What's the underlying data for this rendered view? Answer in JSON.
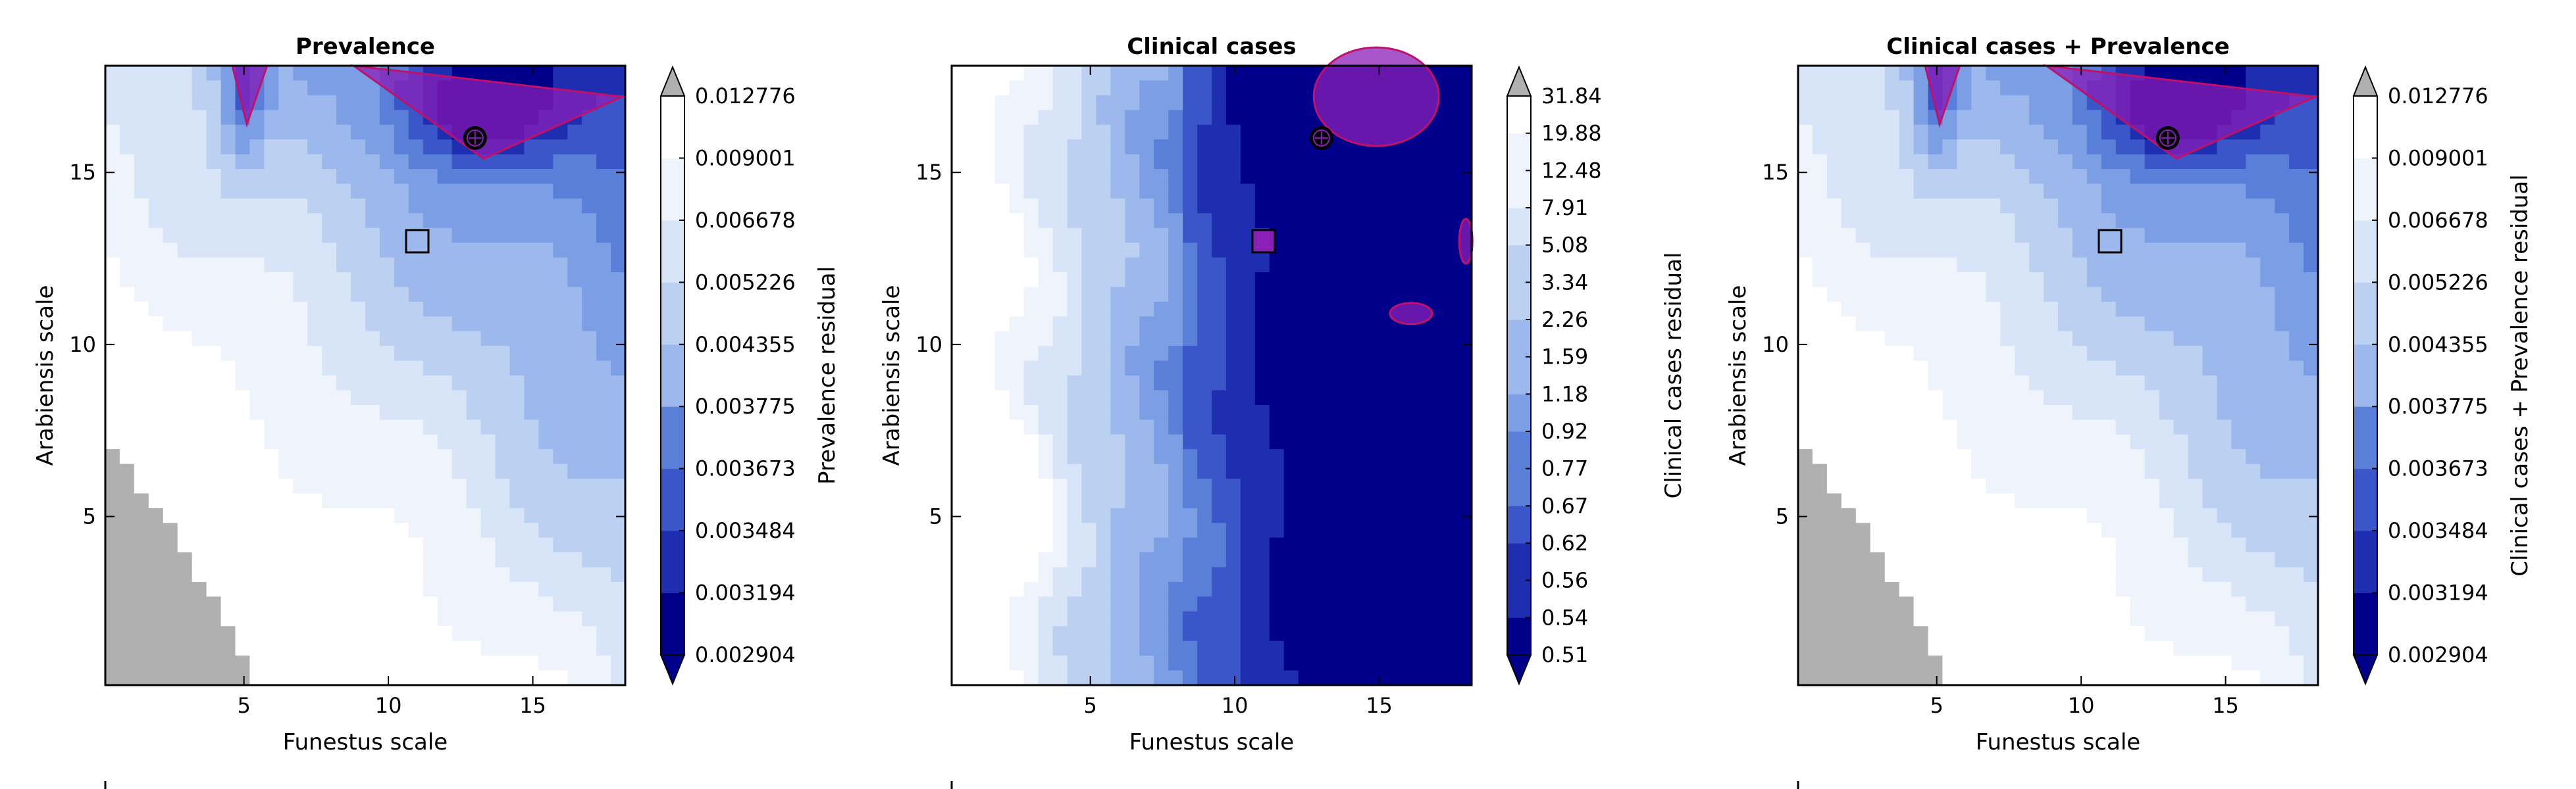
{
  "chart_data": [
    {
      "type": "contour",
      "title": "Prevalence",
      "xlabel": "Funestus scale",
      "ylabel": "Arabiensis scale",
      "xlim": [
        0.2,
        18.2
      ],
      "ylim": [
        0.1,
        18.1
      ],
      "xticks": [
        5,
        10,
        15
      ],
      "yticks": [
        5,
        10,
        15
      ],
      "colorbar": {
        "label": "Prevalence residual",
        "levels": [
          "0.002904",
          "0.003194",
          "0.003484",
          "0.003673",
          "0.003775",
          "0.004355",
          "0.005226",
          "0.006678",
          "0.009001",
          "0.012776"
        ],
        "extend": "both",
        "over_color": "#b0b0b0",
        "under_color": "#00008b"
      },
      "markers": [
        {
          "shape": "square",
          "x": 11,
          "y": 13
        },
        {
          "shape": "target",
          "x": 13,
          "y": 16
        }
      ]
    },
    {
      "type": "contour",
      "title": "Clinical cases",
      "xlabel": "Funestus scale",
      "ylabel": "Arabiensis scale",
      "xlim": [
        0.2,
        18.2
      ],
      "ylim": [
        0.1,
        18.1
      ],
      "xticks": [
        5,
        10,
        15
      ],
      "yticks": [
        5,
        10,
        15
      ],
      "colorbar": {
        "label": "Clinical cases residual",
        "levels": [
          "0.51",
          "0.54",
          "0.56",
          "0.62",
          "0.67",
          "0.77",
          "0.92",
          "1.18",
          "1.59",
          "2.26",
          "3.34",
          "5.08",
          "7.91",
          "12.48",
          "19.88",
          "31.84"
        ],
        "extend": "both",
        "over_color": "#b0b0b0",
        "under_color": "#00008b"
      },
      "markers": [
        {
          "shape": "square",
          "x": 11,
          "y": 13
        },
        {
          "shape": "target",
          "x": 13,
          "y": 16
        }
      ]
    },
    {
      "type": "contour",
      "title": "Clinical cases + Prevalence",
      "xlabel": "Funestus scale",
      "ylabel": "Arabiensis scale",
      "xlim": [
        0.2,
        18.2
      ],
      "ylim": [
        0.1,
        18.1
      ],
      "xticks": [
        5,
        10,
        15
      ],
      "yticks": [
        5,
        10,
        15
      ],
      "colorbar": {
        "label": "Clinical cases + Prevalence residual",
        "levels": [
          "0.002904",
          "0.003194",
          "0.003484",
          "0.003673",
          "0.003775",
          "0.004355",
          "0.005226",
          "0.006678",
          "0.009001",
          "0.012776"
        ],
        "extend": "both",
        "over_color": "#b0b0b0",
        "under_color": "#00008b"
      },
      "markers": [
        {
          "shape": "square",
          "x": 11,
          "y": 13
        },
        {
          "shape": "target",
          "x": 13,
          "y": 16
        }
      ]
    }
  ],
  "palette": [
    "#00008b",
    "#1f2eb0",
    "#3b56c8",
    "#5a7fd8",
    "#7b9ee4",
    "#9cb8ec",
    "#bcd0f2",
    "#d8e4f8",
    "#eef3fc",
    "#ffffff"
  ],
  "highlight_color": "#8b1fb8"
}
